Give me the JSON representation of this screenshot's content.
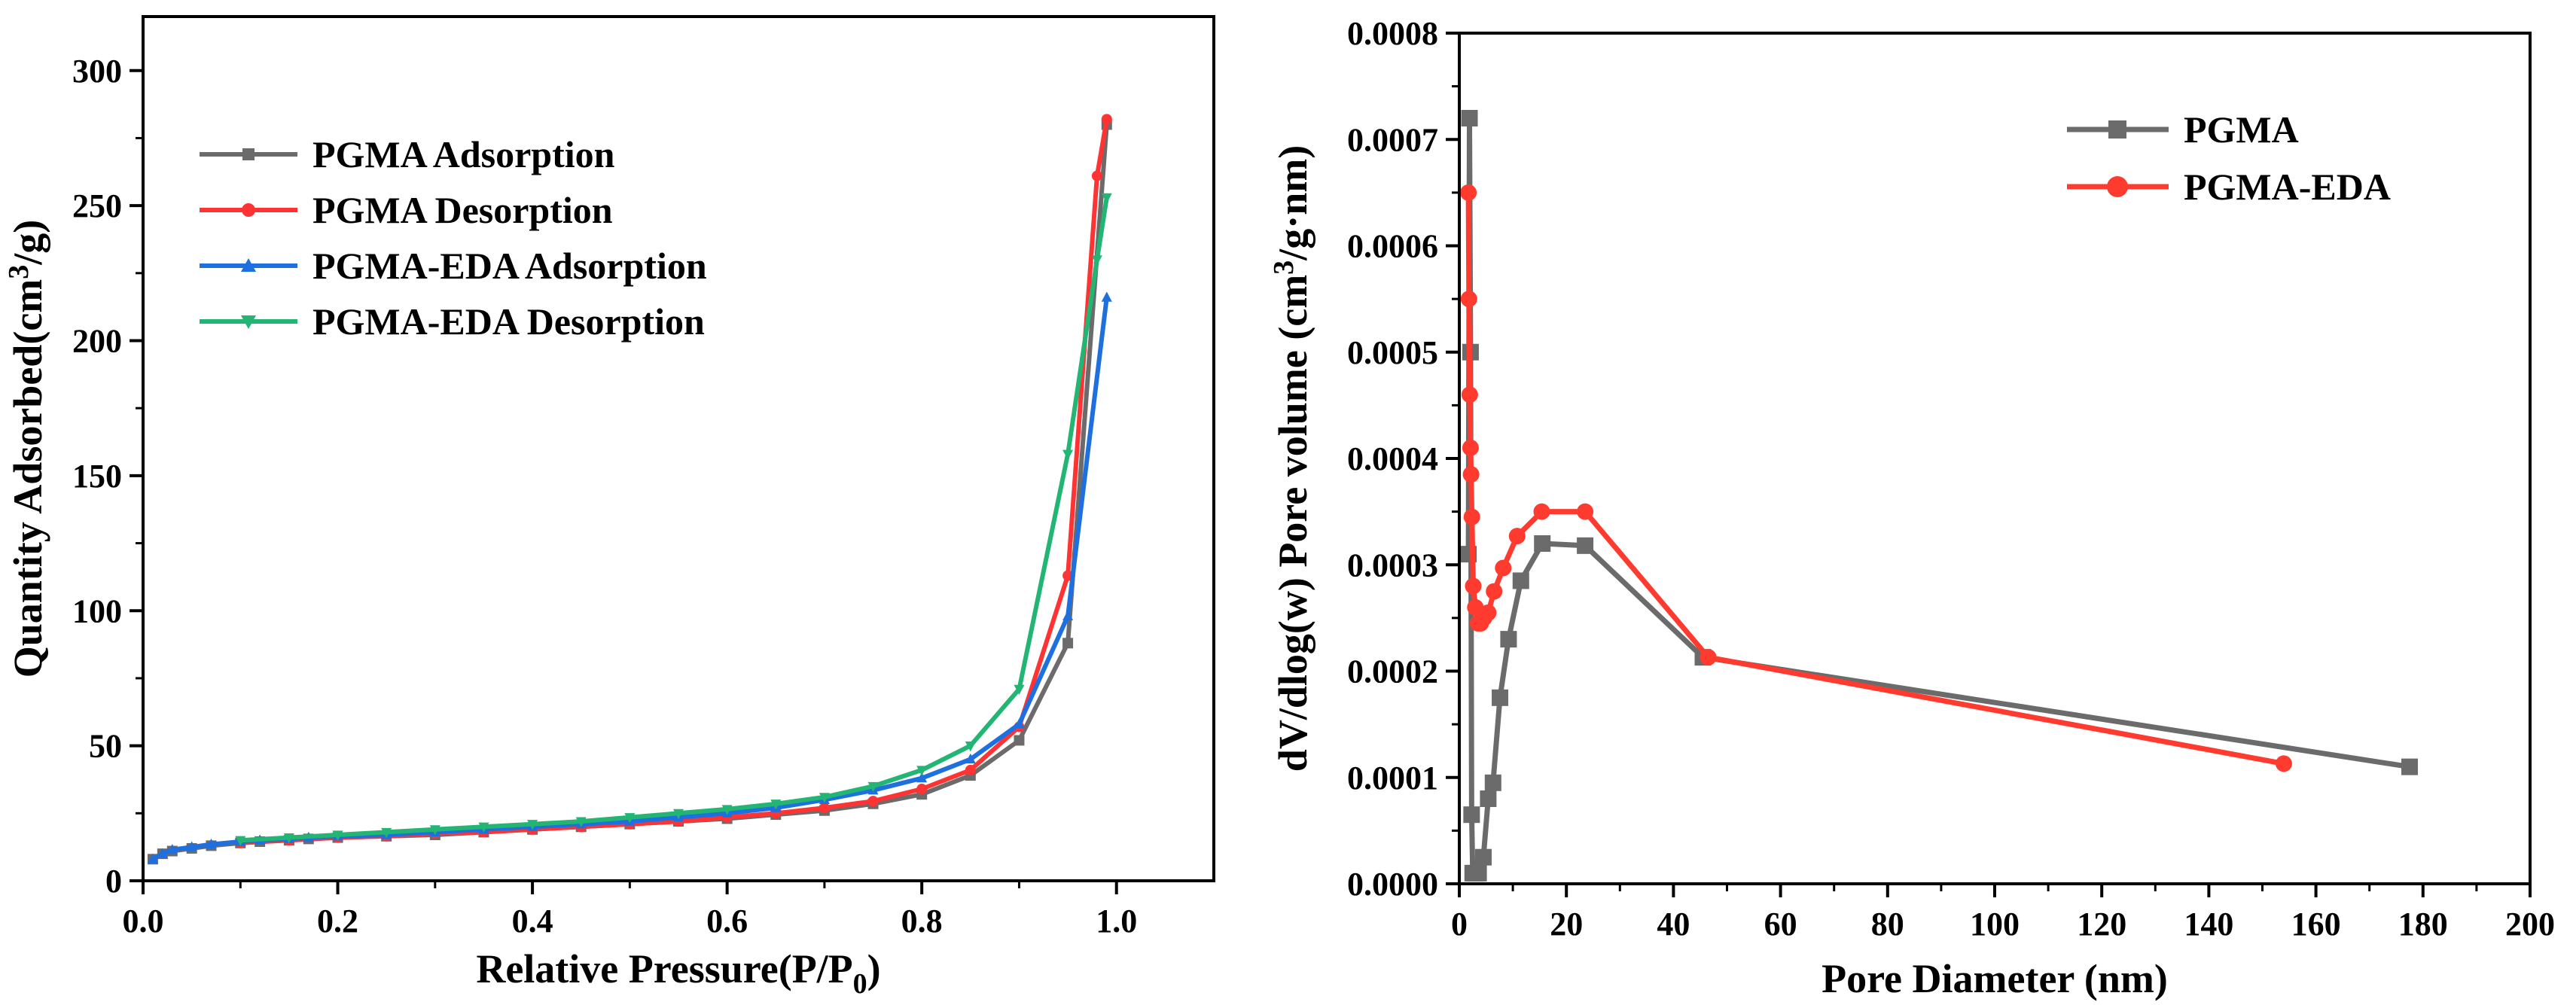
{
  "chart_data": [
    {
      "type": "line",
      "id": "isotherm",
      "xlabel": "Relative Pressure(P/P",
      "xlabel_sub": "0",
      "xlabel_suffix": ")",
      "ylabel": "Quantity Adsorbed(cm",
      "ylabel_sup": "3",
      "ylabel_suffix": "/g)",
      "xlim": [
        0.0,
        1.1
      ],
      "ylim": [
        0,
        320
      ],
      "xticks": [
        0.0,
        0.2,
        0.4,
        0.6,
        0.8,
        1.0
      ],
      "xtick_labels": [
        "0.0",
        "0.2",
        "0.4",
        "0.6",
        "0.8",
        "1.0"
      ],
      "yticks": [
        0,
        50,
        100,
        150,
        200,
        250,
        300
      ],
      "ytick_labels": [
        "0",
        "50",
        "100",
        "150",
        "200",
        "250",
        "300"
      ],
      "legend_position": "upper-left",
      "series": [
        {
          "name": "PGMA Adsorption",
          "color": "#6b6b6b",
          "marker": "square",
          "x": [
            0.01,
            0.02,
            0.03,
            0.05,
            0.07,
            0.1,
            0.12,
            0.15,
            0.17,
            0.2,
            0.25,
            0.3,
            0.35,
            0.4,
            0.45,
            0.5,
            0.55,
            0.6,
            0.65,
            0.7,
            0.75,
            0.8,
            0.85,
            0.9,
            0.95,
            0.99
          ],
          "y": [
            8,
            10,
            11,
            12,
            13,
            14,
            14.5,
            15,
            15.5,
            16,
            16.5,
            17,
            18,
            19,
            20,
            21,
            22,
            23,
            24.5,
            26,
            28.5,
            32,
            39,
            52,
            88,
            280
          ]
        },
        {
          "name": "PGMA Desorption",
          "color": "#ff3333",
          "marker": "circle",
          "x": [
            0.99,
            0.98,
            0.95,
            0.9,
            0.85,
            0.8,
            0.75,
            0.7,
            0.65,
            0.6,
            0.55,
            0.5,
            0.45,
            0.4,
            0.35,
            0.3,
            0.25,
            0.2,
            0.15,
            0.1
          ],
          "y": [
            282,
            261,
            113,
            57,
            41,
            34,
            29.5,
            27,
            25,
            23.5,
            22,
            21,
            20,
            19,
            18,
            17.5,
            16.5,
            16,
            15,
            14
          ]
        },
        {
          "name": "PGMA-EDA Adsorption",
          "color": "#1e6fe0",
          "marker": "triangle-up",
          "x": [
            0.01,
            0.02,
            0.03,
            0.05,
            0.07,
            0.1,
            0.12,
            0.15,
            0.17,
            0.2,
            0.25,
            0.3,
            0.35,
            0.4,
            0.45,
            0.5,
            0.55,
            0.6,
            0.65,
            0.7,
            0.75,
            0.8,
            0.85,
            0.9,
            0.95,
            0.99
          ],
          "y": [
            8,
            10,
            11.5,
            12.5,
            13.5,
            14.5,
            15,
            15.5,
            16,
            16.5,
            17,
            18,
            19,
            20,
            21,
            22,
            23.5,
            25,
            27,
            30,
            33.5,
            38,
            45,
            58,
            98,
            216
          ]
        },
        {
          "name": "PGMA-EDA Desorption",
          "color": "#22b573",
          "marker": "triangle-down",
          "x": [
            0.99,
            0.98,
            0.95,
            0.9,
            0.85,
            0.8,
            0.75,
            0.7,
            0.65,
            0.6,
            0.55,
            0.5,
            0.45,
            0.4,
            0.35,
            0.3,
            0.25,
            0.2,
            0.15,
            0.1
          ],
          "y": [
            253,
            230,
            158,
            71,
            50,
            41,
            35,
            31,
            28.5,
            26.5,
            25,
            23.5,
            22,
            21,
            20,
            19,
            18,
            17,
            16,
            15
          ]
        }
      ]
    },
    {
      "type": "line",
      "id": "pore-distribution",
      "xlabel": "Pore Diameter (nm)",
      "ylabel": "dV/dlog(w) Pore volume (cm",
      "ylabel_sup": "3",
      "ylabel_suffix": "/g·nm)",
      "xlim": [
        0,
        200
      ],
      "ylim": [
        0,
        0.0008
      ],
      "xticks": [
        0,
        20,
        40,
        60,
        80,
        100,
        120,
        140,
        160,
        180,
        200
      ],
      "xtick_labels": [
        "0",
        "20",
        "40",
        "60",
        "80",
        "100",
        "120",
        "140",
        "160",
        "180",
        "200"
      ],
      "yticks": [
        0,
        0.0001,
        0.0002,
        0.0003,
        0.0004,
        0.0005,
        0.0006,
        0.0007,
        0.0008
      ],
      "ytick_labels": [
        "0.0000",
        "0.0001",
        "0.0002",
        "0.0003",
        "0.0004",
        "0.0005",
        "0.0006",
        "0.0007",
        "0.0008"
      ],
      "legend_position": "upper-right",
      "series": [
        {
          "name": "PGMA",
          "color": "#6b6b6b",
          "marker": "square",
          "x": [
            1.7,
            1.9,
            2.1,
            2.3,
            2.5,
            2.9,
            3.6,
            4.5,
            5.4,
            6.3,
            7.6,
            9.2,
            11.5,
            15.5,
            23.5,
            45.5,
            177.5
          ],
          "y": [
            0.00031,
            0.00072,
            0.0005,
            6.5e-05,
            1e-05,
            1e-05,
            1e-05,
            2.5e-05,
            8e-05,
            9.5e-05,
            0.000175,
            0.00023,
            0.000285,
            0.00032,
            0.000318,
            0.000213,
            0.00011
          ]
        },
        {
          "name": "PGMA-EDA",
          "color": "#ff3b30",
          "marker": "circle",
          "x": [
            1.7,
            1.8,
            1.95,
            2.1,
            2.2,
            2.35,
            2.6,
            3.0,
            3.5,
            4.0,
            4.6,
            5.4,
            6.5,
            8.2,
            10.8,
            15.4,
            23.5,
            46.5,
            154
          ],
          "y": [
            0.00065,
            0.00055,
            0.00046,
            0.00041,
            0.000385,
            0.000345,
            0.00028,
            0.00026,
            0.000245,
            0.000245,
            0.00025,
            0.000255,
            0.000275,
            0.000297,
            0.000327,
            0.00035,
            0.00035,
            0.000213,
            0.000113
          ]
        }
      ]
    }
  ]
}
